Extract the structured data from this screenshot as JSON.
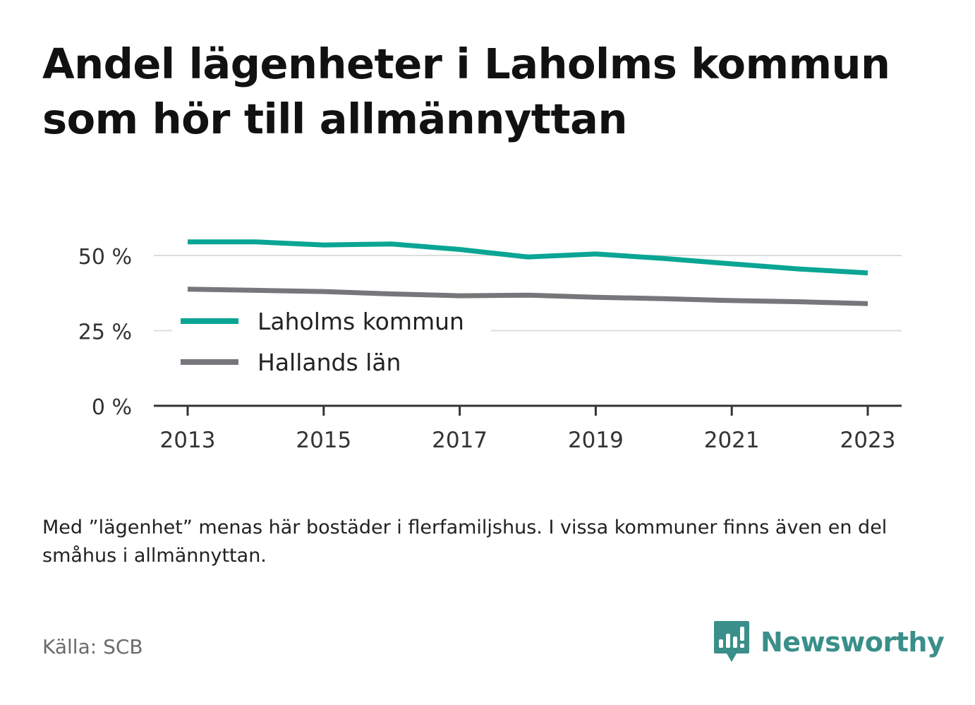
{
  "title": "Andel lägenheter i Laholms kommun som hör till allmännyttan",
  "note": "Med ”lägenhet” menas här bostäder i flerfamiljshus. I vissa kommuner finns även en del småhus i allmännyttan.",
  "source": "Källa: SCB",
  "brand": {
    "name": "Newsworthy",
    "icon": "bar-chart-speech-bubble-icon",
    "color": "#3a8f8a"
  },
  "chart_data": {
    "type": "line",
    "x": [
      2013,
      2014,
      2015,
      2016,
      2017,
      2018,
      2019,
      2020,
      2021,
      2022,
      2023
    ],
    "series": [
      {
        "name": "Laholms kommun",
        "color": "#0aa594",
        "values": [
          54.5,
          54.5,
          53.5,
          53.8,
          52.0,
          49.5,
          50.5,
          49.0,
          47.2,
          45.5,
          44.2
        ]
      },
      {
        "name": "Hallands län",
        "color": "#77767b",
        "values": [
          38.8,
          38.4,
          38.0,
          37.2,
          36.6,
          36.8,
          36.1,
          35.6,
          35.0,
          34.6,
          34.0
        ]
      }
    ],
    "x_ticks": [
      2013,
      2015,
      2017,
      2019,
      2021,
      2023
    ],
    "x_tick_labels": [
      "2013",
      "2015",
      "2017",
      "2019",
      "2021",
      "2023"
    ],
    "y_ticks": [
      0,
      25,
      50
    ],
    "y_tick_labels": [
      "0 %",
      "25 %",
      "50 %"
    ],
    "ylim": [
      0,
      60
    ],
    "xlim": [
      2012.75,
      2023.25
    ],
    "grid": true,
    "legend_position": "center-left"
  }
}
